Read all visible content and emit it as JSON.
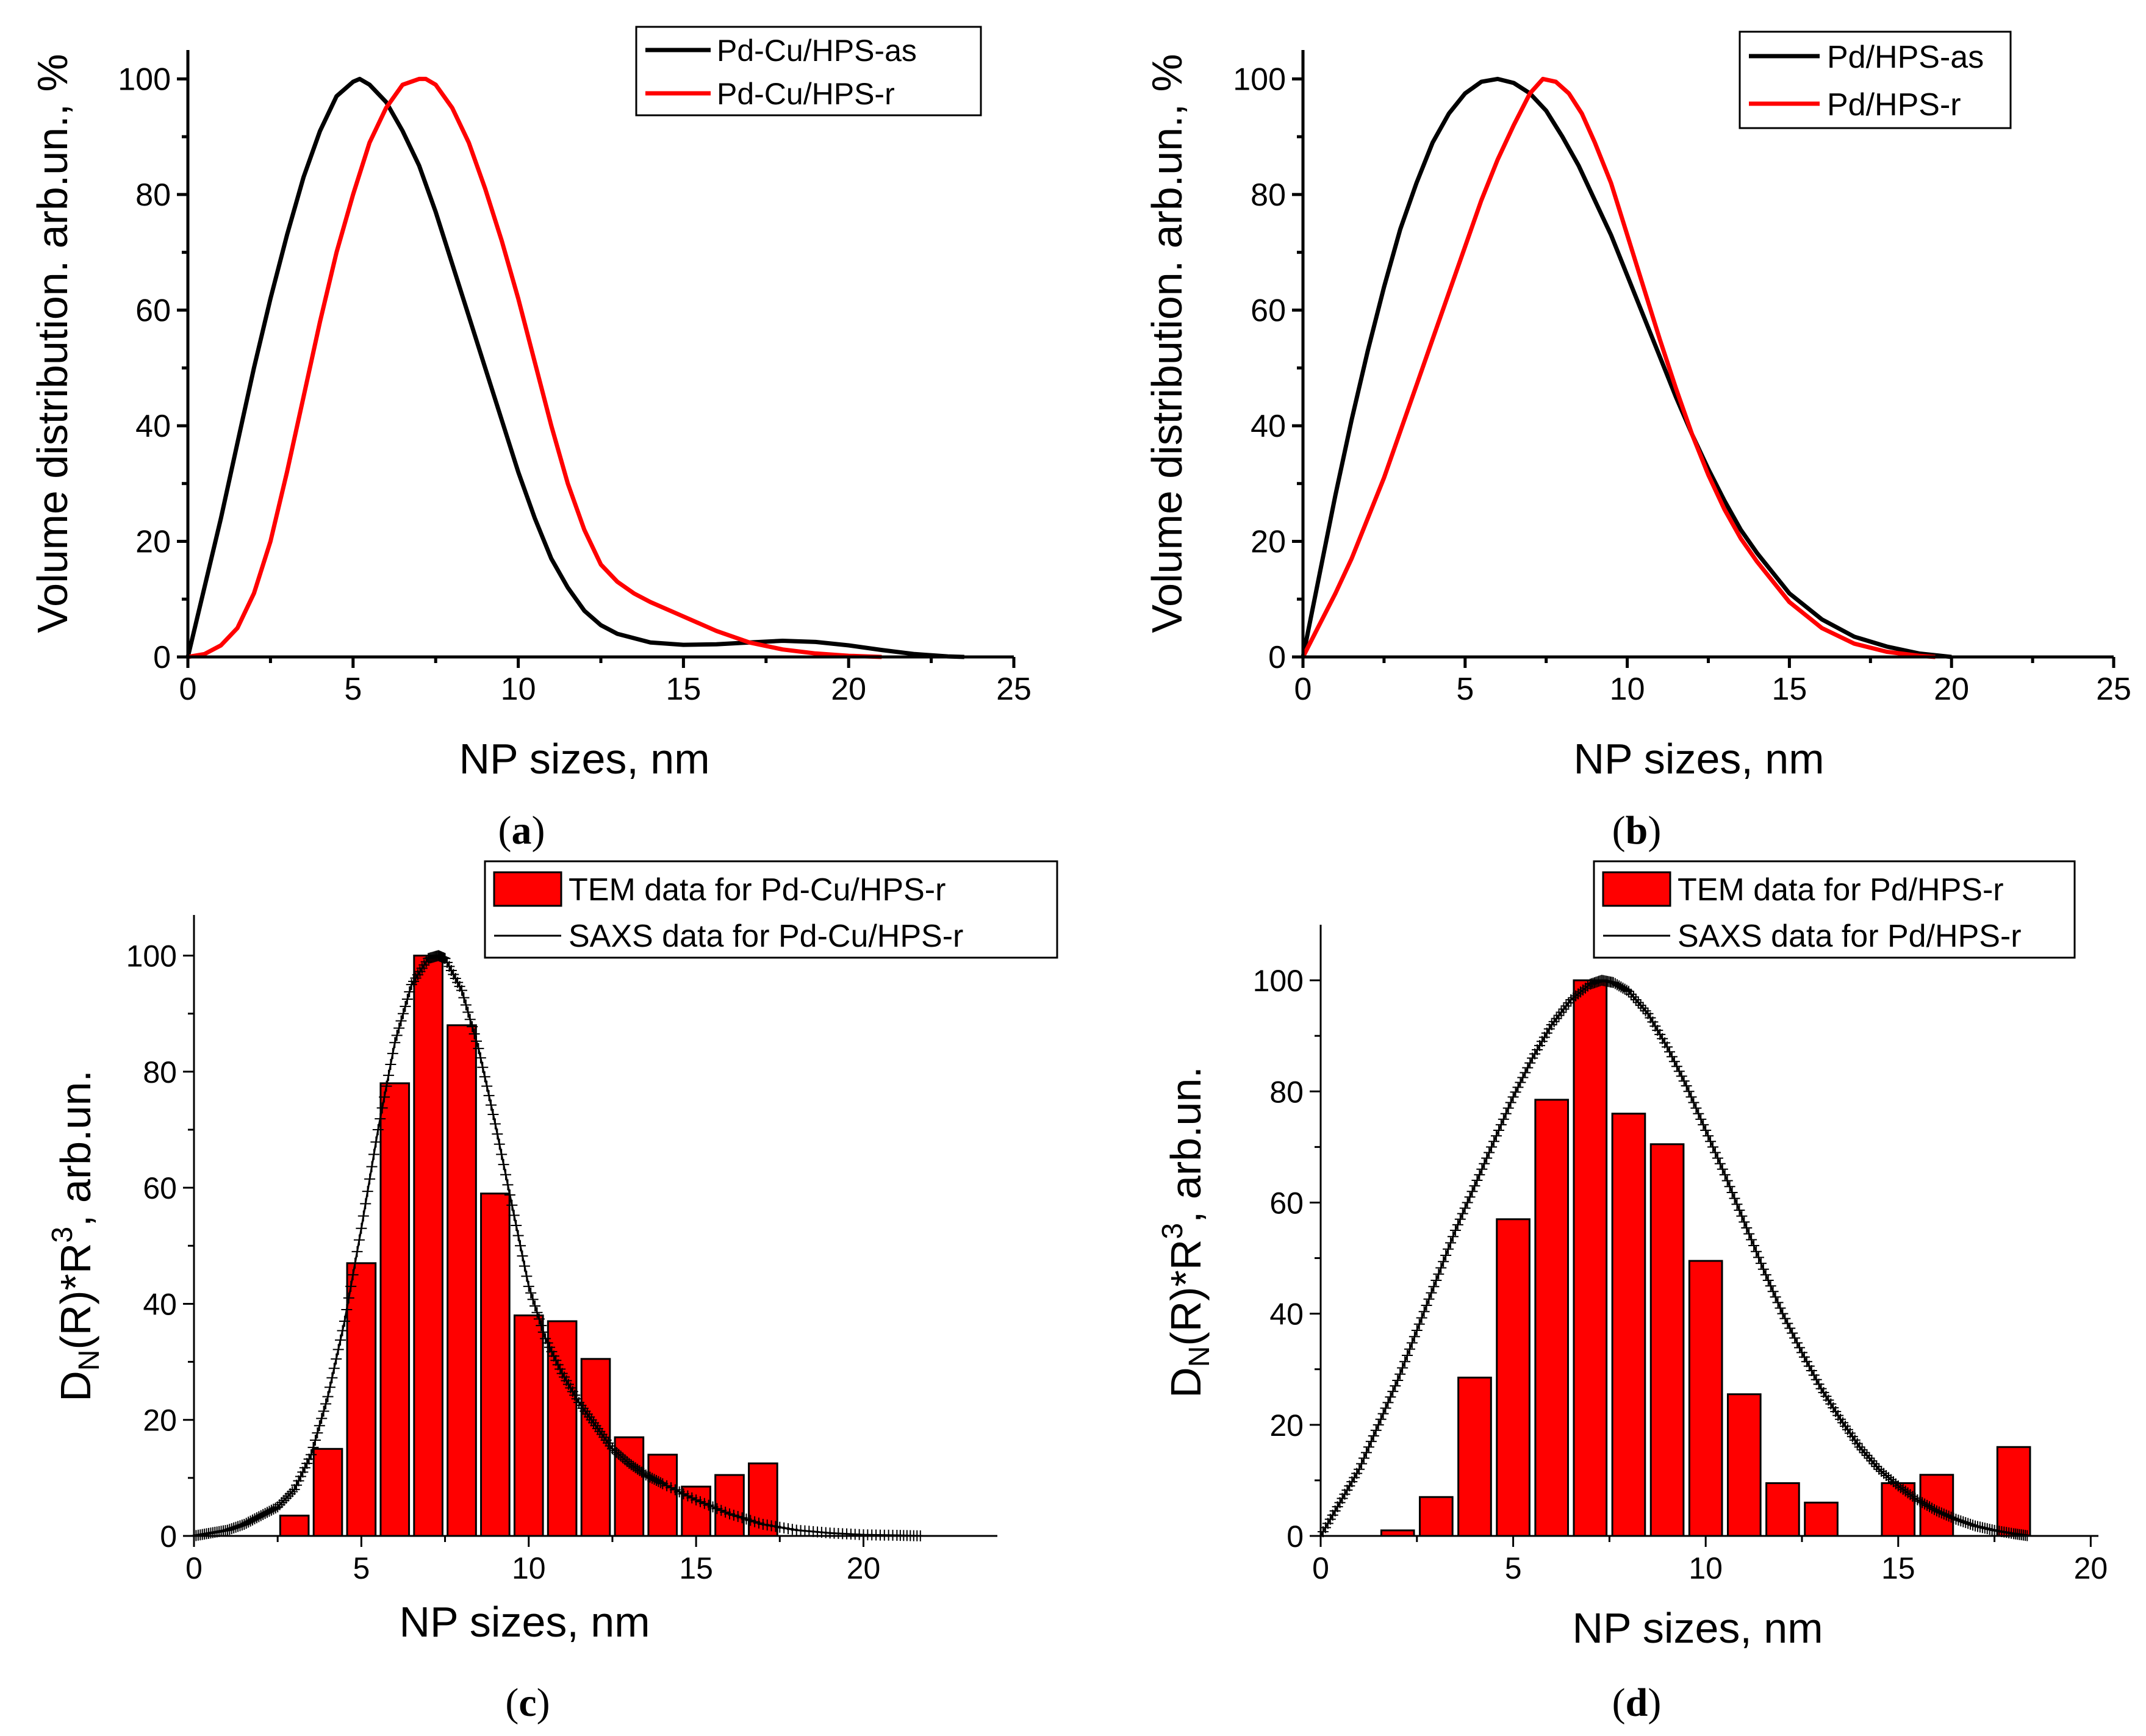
{
  "chart_data": [
    {
      "id": "a",
      "type": "line",
      "panel_label": "(a)",
      "xlabel": "NP sizes, nm",
      "ylabel": "Volume distribution. arb.un., %",
      "xlim": [
        0,
        25
      ],
      "ylim": [
        0,
        105
      ],
      "xticks": [
        0,
        5,
        10,
        15,
        20,
        25
      ],
      "yticks": [
        0,
        20,
        40,
        60,
        80,
        100
      ],
      "legend_position": "top-right",
      "series": [
        {
          "name": "Pd-Cu/HPS-as",
          "color": "#000000",
          "x": [
            0,
            0.5,
            1,
            1.5,
            2,
            2.5,
            3,
            3.5,
            4,
            4.5,
            5,
            5.2,
            5.5,
            6,
            6.5,
            7,
            7.5,
            8,
            8.5,
            9,
            9.5,
            10,
            10.5,
            11,
            11.5,
            12,
            12.5,
            13,
            14,
            15,
            16,
            17,
            18,
            19,
            20,
            21,
            22,
            23,
            23.5
          ],
          "y": [
            0,
            12,
            24,
            37,
            50,
            62,
            73,
            83,
            91,
            97,
            99.5,
            100,
            99,
            96,
            91,
            85,
            77,
            68,
            59,
            50,
            41,
            32,
            24,
            17,
            12,
            8,
            5.5,
            4,
            2.5,
            2.1,
            2.2,
            2.5,
            2.8,
            2.6,
            2,
            1.2,
            0.5,
            0.1,
            0
          ]
        },
        {
          "name": "Pd-Cu/HPS-r",
          "color": "#ff0000",
          "x": [
            0,
            0.5,
            1,
            1.5,
            2,
            2.5,
            3,
            3.5,
            4,
            4.5,
            5,
            5.5,
            6,
            6.5,
            7,
            7.2,
            7.5,
            8,
            8.5,
            9,
            9.5,
            10,
            10.5,
            11,
            11.5,
            12,
            12.5,
            13,
            13.5,
            14,
            15,
            16,
            17,
            18,
            19,
            20,
            21
          ],
          "y": [
            0,
            0.5,
            2,
            5,
            11,
            20,
            32,
            45,
            58,
            70,
            80,
            89,
            95,
            99,
            100,
            100,
            99,
            95,
            89,
            81,
            72,
            62,
            51,
            40,
            30,
            22,
            16,
            13,
            11,
            9.5,
            7,
            4.5,
            2.5,
            1.3,
            0.6,
            0.2,
            0
          ]
        }
      ]
    },
    {
      "id": "b",
      "type": "line",
      "panel_label": "(b)",
      "xlabel": "NP sizes, nm",
      "ylabel": "Volume distribution. arb.un., %",
      "xlim": [
        0,
        25
      ],
      "ylim": [
        0,
        105
      ],
      "xticks": [
        0,
        5,
        10,
        15,
        20,
        25
      ],
      "yticks": [
        0,
        20,
        40,
        60,
        80,
        100
      ],
      "legend_position": "top-right",
      "series": [
        {
          "name": "Pd/HPS-as",
          "color": "#000000",
          "x": [
            0,
            0.5,
            1,
            1.5,
            2,
            2.5,
            3,
            3.5,
            4,
            4.5,
            5,
            5.5,
            6,
            6.5,
            7,
            7.5,
            8,
            8.5,
            9,
            9.5,
            10,
            10.5,
            11,
            11.5,
            12,
            12.5,
            13,
            13.5,
            14,
            15,
            16,
            17,
            18,
            19,
            20
          ],
          "y": [
            0,
            14,
            28,
            41,
            53,
            64,
            74,
            82,
            89,
            94,
            97.5,
            99.5,
            100,
            99.3,
            97.5,
            94.5,
            90,
            85,
            79,
            73,
            66,
            59,
            52,
            45,
            38.5,
            32.5,
            27,
            22,
            18,
            11,
            6.5,
            3.5,
            1.8,
            0.6,
            0
          ]
        },
        {
          "name": "Pd/HPS-r",
          "color": "#ff0000",
          "x": [
            0,
            0.5,
            1,
            1.5,
            2,
            2.5,
            3,
            3.5,
            4,
            4.5,
            5,
            5.5,
            6,
            6.5,
            7,
            7.4,
            7.8,
            8.2,
            8.6,
            9,
            9.5,
            10,
            10.5,
            11,
            11.5,
            12,
            12.5,
            13,
            13.5,
            14,
            15,
            16,
            17,
            18,
            19,
            19.5
          ],
          "y": [
            0,
            5.5,
            11,
            17,
            24,
            31,
            39,
            47,
            55,
            63,
            71,
            79,
            86,
            92,
            97.5,
            100,
            99.5,
            97.5,
            94,
            89,
            82,
            73,
            64,
            55,
            46.5,
            38.5,
            31.5,
            25.5,
            20.5,
            16.5,
            9.5,
            5,
            2.3,
            0.9,
            0.2,
            0
          ]
        }
      ]
    },
    {
      "id": "c",
      "type": "bar",
      "panel_label": "(c)",
      "xlabel": "NP sizes, nm",
      "ylabel": "DN(R)*R3, arb.un.",
      "ylabel_parts": {
        "main": "D",
        "sub1": "N",
        "mid": "(R)*R",
        "sup": "3",
        "tail": ", arb.un."
      },
      "xlim": [
        0,
        24
      ],
      "ylim": [
        0,
        107
      ],
      "xticks": [
        0,
        5,
        10,
        15,
        20
      ],
      "yticks": [
        0,
        20,
        40,
        60,
        80,
        100
      ],
      "legend_position": "top-right",
      "bar_width": 0.85,
      "bars": {
        "name": "TEM data for Pd-Cu/HPS-r",
        "color": "#ff0000",
        "x": [
          3,
          4,
          5,
          6,
          7,
          8,
          9,
          10,
          11,
          12,
          13,
          14,
          15,
          16,
          17
        ],
        "values": [
          3.5,
          15,
          47,
          78,
          100,
          88,
          59,
          38,
          37,
          30.5,
          17,
          14,
          8.5,
          10.5,
          12.5
        ]
      },
      "curve": {
        "name": "SAXS data for Pd-Cu/HPS-r",
        "color": "#000000",
        "x": [
          0,
          0.5,
          1,
          1.5,
          2,
          2.5,
          3,
          3.5,
          4,
          4.5,
          5,
          5.5,
          6,
          6.5,
          7,
          7.3,
          7.5,
          8,
          8.5,
          9,
          9.5,
          10,
          10.5,
          11,
          11.5,
          12,
          12.5,
          13,
          13.5,
          14,
          15,
          16,
          17,
          18,
          19,
          20,
          21,
          21.8
        ],
        "y": [
          0,
          0.5,
          1,
          2,
          3.5,
          5,
          8,
          14,
          24,
          37,
          53,
          70,
          85,
          95,
          99.5,
          100,
          99.5,
          94,
          84,
          71,
          57,
          43,
          34,
          28,
          23,
          19,
          15,
          12.5,
          10.5,
          9,
          6.2,
          3.8,
          2,
          1,
          0.5,
          0.2,
          0.1,
          0
        ]
      }
    },
    {
      "id": "d",
      "type": "bar",
      "panel_label": "(d)",
      "xlabel": "NP sizes, nm",
      "ylabel": "DN(R)*R3, arb.un.",
      "ylabel_parts": {
        "main": "D",
        "sub1": "N",
        "mid": "(R)*R",
        "sup": "3",
        "tail": ", arb.un."
      },
      "xlim": [
        0,
        20.2
      ],
      "ylim": [
        0,
        110
      ],
      "xticks": [
        0,
        5,
        10,
        15,
        20
      ],
      "yticks": [
        0,
        20,
        40,
        60,
        80,
        100
      ],
      "legend_position": "top-right",
      "bar_width": 0.85,
      "bars": {
        "name": "TEM data for Pd/HPS-r",
        "color": "#ff0000",
        "x": [
          2,
          3,
          4,
          5,
          6,
          7,
          8,
          9,
          10,
          11,
          12,
          13,
          15,
          16,
          18
        ],
        "values": [
          1,
          7,
          28.5,
          57,
          78.5,
          100,
          76,
          70.5,
          49.5,
          25.5,
          9.5,
          6,
          9.5,
          11,
          16
        ]
      },
      "curve": {
        "name": "SAXS data for Pd/HPS-r",
        "color": "#000000",
        "x": [
          0,
          0.5,
          1,
          1.5,
          2,
          2.5,
          3,
          3.5,
          4,
          4.5,
          5,
          5.5,
          6,
          6.5,
          7,
          7.3,
          7.6,
          8,
          8.5,
          9,
          9.5,
          10,
          10.5,
          11,
          11.5,
          12,
          12.5,
          13,
          13.5,
          14,
          14.5,
          15,
          15.5,
          16,
          16.5,
          17,
          17.5,
          18,
          18.4
        ],
        "y": [
          0,
          6,
          12,
          20,
          28,
          37,
          46,
          55,
          63,
          71,
          79,
          86,
          92,
          96.5,
          99.3,
          100,
          99.6,
          98,
          94,
          88,
          81,
          73,
          65,
          56.5,
          48,
          40,
          33,
          26.5,
          21,
          16,
          12,
          9,
          6.5,
          4.5,
          3,
          1.8,
          1,
          0.4,
          0
        ]
      }
    }
  ]
}
